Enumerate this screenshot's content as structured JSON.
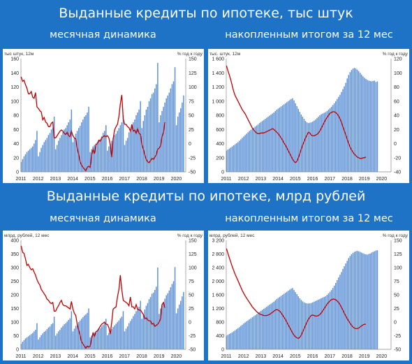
{
  "section1": {
    "title": "Выданные кредиты по ипотеке, тыс штук",
    "left_subtitle": "месячная динамика",
    "right_subtitle": "накопленным итогом за 12 мес"
  },
  "section2": {
    "title": "Выданные кредиты по ипотеке, млрд рублей",
    "left_subtitle": "месячная динамика",
    "right_subtitle": "накопленным итогом за 12 мес"
  },
  "colors": {
    "bar": "#5b8fd6",
    "line": "#c00000",
    "background": "#1e73c6"
  },
  "chart_data": [
    {
      "type": "bar",
      "panel": "units-monthly",
      "left_axis_label": "тыс штук, 12м",
      "right_axis_label": "% год к году",
      "left_ticks": [
        0,
        20,
        40,
        60,
        80,
        100,
        120,
        140,
        160
      ],
      "right_ticks": [
        -50,
        -25,
        0,
        25,
        50,
        75,
        100,
        125,
        150
      ],
      "ylim": [
        0,
        160
      ],
      "y2lim": [
        -50,
        150
      ],
      "x_labels": [
        "2011",
        "2012",
        "2013",
        "2014",
        "2015",
        "2016",
        "2017",
        "2018",
        "2019",
        "2020"
      ],
      "bar_start": 2011.0,
      "bar_step": 0.0833,
      "bars": [
        14,
        18,
        22,
        25,
        28,
        30,
        32,
        34,
        36,
        40,
        45,
        58,
        22,
        28,
        34,
        38,
        42,
        45,
        48,
        52,
        55,
        60,
        62,
        78,
        32,
        38,
        44,
        48,
        52,
        56,
        60,
        62,
        66,
        70,
        74,
        88,
        42,
        48,
        54,
        58,
        62,
        65,
        70,
        74,
        78,
        80,
        84,
        92,
        28,
        32,
        36,
        38,
        40,
        42,
        44,
        46,
        50,
        55,
        58,
        66,
        30,
        36,
        40,
        44,
        48,
        52,
        54,
        58,
        62,
        66,
        70,
        80,
        38,
        44,
        48,
        56,
        60,
        64,
        70,
        74,
        80,
        84,
        88,
        100,
        62,
        72,
        80,
        88,
        92,
        100,
        104,
        110,
        112,
        118,
        124,
        154,
        70,
        80,
        86,
        92,
        98,
        104,
        108,
        112,
        118,
        124,
        128,
        148,
        66,
        78,
        84,
        90,
        98,
        108
      ],
      "line": [
        118,
        110,
        112,
        104,
        98,
        88,
        88,
        92,
        82,
        80,
        90,
        65,
        62,
        58,
        56,
        42,
        46,
        38,
        36,
        30,
        30,
        36,
        38,
        10,
        10,
        14,
        18,
        22,
        24,
        22,
        18,
        16,
        20,
        14,
        12,
        22,
        14,
        10,
        8,
        -8,
        -18,
        -32,
        -38,
        -42,
        -45,
        -48,
        -42,
        -40,
        -42,
        -20,
        -10,
        -18,
        -2,
        0,
        6,
        4,
        10,
        12,
        14,
        12,
        14,
        10,
        -2,
        -24,
        8,
        24,
        30,
        34,
        48,
        70,
        86,
        44,
        34,
        34,
        30,
        28,
        22,
        34,
        22,
        24,
        18,
        26,
        18,
        16,
        -2,
        -10,
        -20,
        -28,
        -32,
        -34,
        -30,
        -26,
        -28,
        -24,
        -20,
        -10,
        -8,
        -4,
        12,
        20,
        38
      ]
    },
    {
      "type": "bar",
      "panel": "units-12m",
      "left_axis_label": "тыс. штук, 12м",
      "right_axis_label": "% год к году",
      "left_ticks": [
        0,
        200,
        400,
        600,
        800,
        1000,
        1200,
        1400,
        1600
      ],
      "left_tick_labels": [
        "0",
        "200",
        "400",
        "600",
        "800",
        "1 000",
        "1 200",
        "1 400",
        "1 600"
      ],
      "right_ticks": [
        -40,
        -20,
        0,
        20,
        40,
        60,
        80,
        100,
        120
      ],
      "ylim": [
        0,
        1600
      ],
      "y2lim": [
        -40,
        120
      ],
      "x_labels": [
        "2011",
        "2012",
        "2013",
        "2014",
        "2015",
        "2016",
        "2017",
        "2018",
        "2019",
        "2020"
      ],
      "bar_start": 2011.0,
      "bar_step": 0.0833,
      "bars": [
        300,
        315,
        330,
        345,
        360,
        375,
        390,
        405,
        420,
        440,
        460,
        480,
        500,
        520,
        540,
        560,
        580,
        595,
        610,
        625,
        640,
        655,
        670,
        690,
        705,
        720,
        735,
        750,
        765,
        780,
        795,
        810,
        825,
        840,
        860,
        880,
        895,
        910,
        925,
        940,
        955,
        970,
        985,
        1000,
        1015,
        1030,
        1040,
        1010,
        970,
        930,
        890,
        850,
        810,
        780,
        750,
        720,
        700,
        690,
        695,
        700,
        710,
        725,
        740,
        760,
        780,
        800,
        815,
        825,
        835,
        845,
        860,
        880,
        900,
        920,
        945,
        970,
        1000,
        1030,
        1060,
        1090,
        1130,
        1170,
        1210,
        1260,
        1320,
        1370,
        1410,
        1440,
        1460,
        1470,
        1460,
        1445,
        1425,
        1400,
        1375,
        1350,
        1330,
        1315,
        1300,
        1290,
        1285,
        1280,
        1285,
        1290,
        1270,
        1280
      ],
      "line": [
        110,
        103,
        97,
        90,
        82,
        74,
        68,
        64,
        60,
        56,
        52,
        48,
        45,
        42,
        38,
        34,
        30,
        26,
        22,
        19,
        17,
        15,
        14,
        14,
        15,
        15,
        15,
        16,
        17,
        18,
        19,
        20,
        21,
        20,
        18,
        16,
        14,
        11,
        8,
        5,
        1,
        -2,
        -6,
        -10,
        -14,
        -18,
        -22,
        -25,
        -27,
        -25,
        -20,
        -14,
        -8,
        -2,
        3,
        8,
        12,
        16,
        15,
        12,
        11,
        11,
        12,
        13,
        15,
        18,
        22,
        26,
        30,
        34,
        37,
        40,
        43,
        44,
        45,
        45,
        44,
        42,
        39,
        35,
        30,
        24,
        18,
        12,
        6,
        0,
        -5,
        -9,
        -12,
        -15,
        -17,
        -19,
        -20,
        -21,
        -21,
        -20,
        -20,
        -19
      ]
    },
    {
      "type": "bar",
      "panel": "rubles-monthly",
      "left_axis_label": "млрд. рублей, 12 мес",
      "right_axis_label": "% год к году",
      "left_ticks": [
        0,
        50,
        100,
        150,
        200,
        250,
        300,
        350,
        400
      ],
      "right_ticks": [
        -50,
        -25,
        0,
        25,
        50,
        75,
        100,
        125,
        150
      ],
      "ylim": [
        0,
        400
      ],
      "y2lim": [
        -50,
        150
      ],
      "x_labels": [
        "2011",
        "2012",
        "2013",
        "2014",
        "2015",
        "2016",
        "2017",
        "2018",
        "2019",
        "2020"
      ],
      "bar_start": 2011.0,
      "bar_step": 0.0833,
      "bars": [
        20,
        28,
        34,
        40,
        44,
        48,
        52,
        56,
        60,
        66,
        72,
        96,
        36,
        44,
        52,
        58,
        64,
        68,
        74,
        80,
        84,
        92,
        96,
        120,
        50,
        58,
        66,
        72,
        80,
        86,
        92,
        96,
        102,
        108,
        114,
        140,
        66,
        76,
        86,
        94,
        100,
        106,
        112,
        118,
        124,
        128,
        134,
        150,
        44,
        50,
        56,
        62,
        66,
        70,
        74,
        78,
        84,
        90,
        96,
        112,
        52,
        60,
        68,
        74,
        82,
        88,
        94,
        100,
        106,
        114,
        120,
        140,
        66,
        76,
        84,
        96,
        104,
        112,
        122,
        130,
        140,
        148,
        156,
        178,
        112,
        130,
        146,
        160,
        170,
        184,
        192,
        204,
        208,
        218,
        230,
        300,
        130,
        150,
        162,
        174,
        186,
        198,
        206,
        216,
        228,
        240,
        250,
        302,
        132,
        150,
        164,
        178,
        194,
        210
      ],
      "line": [
        140,
        128,
        126,
        116,
        104,
        106,
        100,
        96,
        98,
        92,
        86,
        78,
        72,
        68,
        60,
        56,
        52,
        48,
        42,
        40,
        36,
        34,
        36,
        20,
        20,
        26,
        30,
        36,
        40,
        32,
        30,
        30,
        28,
        26,
        24,
        38,
        24,
        16,
        12,
        -4,
        -14,
        -24,
        -36,
        -40,
        -44,
        -48,
        -44,
        -46,
        -44,
        -30,
        -20,
        -26,
        -18,
        -16,
        -12,
        -8,
        -4,
        -2,
        0,
        -4,
        -4,
        -10,
        -22,
        0,
        24,
        26,
        28,
        46,
        60,
        86,
        60,
        40,
        38,
        36,
        34,
        30,
        46,
        28,
        28,
        24,
        32,
        24,
        22,
        22,
        18,
        14,
        6,
        8,
        4,
        2,
        2,
        -4,
        -2,
        -8,
        -6,
        -4,
        0,
        6,
        32,
        36,
        26
      ]
    },
    {
      "type": "bar",
      "panel": "rubles-12m",
      "left_axis_label": "млрд. рублей, 12 мес",
      "right_axis_label": "% год к году",
      "left_ticks": [
        0,
        400,
        800,
        1200,
        1600,
        2000,
        2400,
        2800,
        3200
      ],
      "left_tick_labels": [
        "0",
        "400",
        "800",
        "1 200",
        "1 600",
        "2 000",
        "2 400",
        "2 800",
        "3 200"
      ],
      "right_ticks": [
        -50,
        -25,
        0,
        25,
        50,
        75,
        100,
        125,
        150
      ],
      "ylim": [
        0,
        3200
      ],
      "y2lim": [
        -50,
        150
      ],
      "x_labels": [
        "2011",
        "2012",
        "2013",
        "2014",
        "2015",
        "2016",
        "2017",
        "2018",
        "2019",
        "2020"
      ],
      "bar_start": 2011.0,
      "bar_step": 0.0833,
      "bars": [
        400,
        425,
        450,
        475,
        500,
        530,
        560,
        590,
        620,
        650,
        690,
        720,
        760,
        790,
        820,
        850,
        880,
        910,
        940,
        970,
        1000,
        1030,
        1060,
        1100,
        1130,
        1160,
        1190,
        1220,
        1250,
        1280,
        1310,
        1340,
        1370,
        1400,
        1440,
        1480,
        1510,
        1540,
        1570,
        1600,
        1630,
        1660,
        1690,
        1720,
        1750,
        1780,
        1800,
        1740,
        1680,
        1620,
        1560,
        1500,
        1450,
        1410,
        1380,
        1360,
        1350,
        1345,
        1350,
        1360,
        1380,
        1400,
        1420,
        1440,
        1460,
        1480,
        1500,
        1520,
        1540,
        1560,
        1600,
        1640,
        1690,
        1740,
        1800,
        1870,
        1950,
        2030,
        2110,
        2190,
        2270,
        2360,
        2440,
        2520,
        2600,
        2680,
        2740,
        2790,
        2830,
        2860,
        2880,
        2890,
        2880,
        2860,
        2840,
        2820,
        2800,
        2790,
        2780,
        2800,
        2810,
        2840,
        2860,
        2880,
        2900,
        2910
      ],
      "line": [
        135,
        126,
        118,
        110,
        102,
        95,
        88,
        82,
        76,
        70,
        64,
        58,
        53,
        48,
        44,
        40,
        36,
        32,
        28,
        25,
        22,
        19,
        17,
        15,
        14,
        13,
        12,
        12,
        12,
        13,
        14,
        16,
        18,
        20,
        22,
        23,
        22,
        20,
        17,
        13,
        9,
        5,
        0,
        -5,
        -10,
        -15,
        -20,
        -24,
        -27,
        -29,
        -30,
        -28,
        -24,
        -18,
        -12,
        -6,
        0,
        5,
        9,
        12,
        13,
        12,
        11,
        11,
        12,
        14,
        17,
        21,
        25,
        29,
        33,
        36,
        39,
        41,
        42,
        42,
        41,
        39,
        36,
        32,
        27,
        22,
        16,
        11,
        6,
        2,
        -2,
        -6,
        -9,
        -11,
        -12,
        -12,
        -11,
        -9,
        -7,
        -5,
        -4,
        -4
      ]
    }
  ]
}
